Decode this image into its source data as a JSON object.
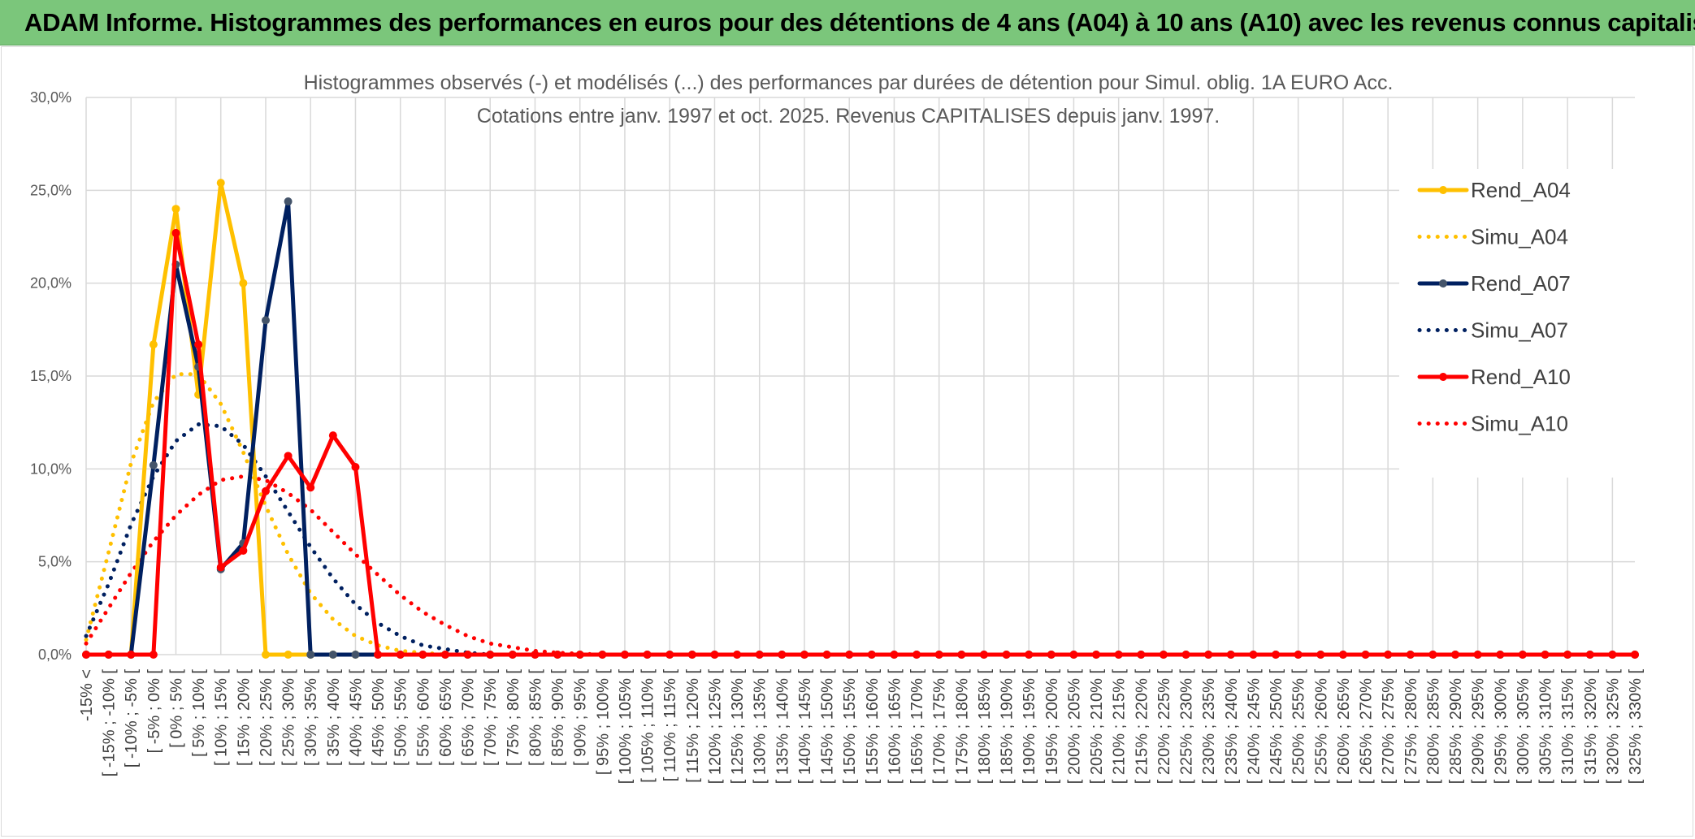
{
  "banner": {
    "title": "ADAM Informe. Histogrammes des performances en euros pour des détentions de 4 ans (A04) à 10 ans (A10) avec les revenus connus capitalisés"
  },
  "colors": {
    "banner_bg": "#7bc67b",
    "A04": "#ffc000",
    "A07": "#002060",
    "A07_marker": "#44546a",
    "A10": "#ff0000",
    "grid": "#d9d9d9"
  },
  "chart_data": {
    "type": "line",
    "title": "Histogrammes observés (-) et modélisés (...) des performances par durées de détention pour Simul. oblig. 1A EURO Acc.",
    "subtitle": "Cotations entre janv. 1997 et oct. 2025. Revenus CAPITALISES depuis janv. 1997.",
    "ylim": [
      0,
      30
    ],
    "yticks": [
      "0,0%",
      "5,0%",
      "10,0%",
      "15,0%",
      "20,0%",
      "25,0%",
      "30,0%"
    ],
    "grid": true,
    "legend_position": "right",
    "categories": [
      "-15% <",
      "[ -15% ; -10% [",
      "[ -10% ; -5% [",
      "[ -5% ; 0% [",
      "[ 0% ; 5% [",
      "[ 5% ; 10% [",
      "[ 10% ; 15% [",
      "[ 15% ; 20% [",
      "[ 20% ; 25% [",
      "[ 25% ; 30% [",
      "[ 30% ; 35% [",
      "[ 35% ; 40% [",
      "[ 40% ; 45% [",
      "[ 45% ; 50% [",
      "[ 50% ; 55% [",
      "[ 55% ; 60% [",
      "[ 60% ; 65% [",
      "[ 65% ; 70% [",
      "[ 70% ; 75% [",
      "[ 75% ; 80% [",
      "[ 80% ; 85% [",
      "[ 85% ; 90% [",
      "[ 90% ; 95% [",
      "[ 95% ; 100% [",
      "[ 100% ; 105% [",
      "[ 105% ; 110% [",
      "[ 110% ; 115% [",
      "[ 115% ; 120% [",
      "[ 120% ; 125% [",
      "[ 125% ; 130% [",
      "[ 130% ; 135% [",
      "[ 135% ; 140% [",
      "[ 140% ; 145% [",
      "[ 145% ; 150% [",
      "[ 150% ; 155% [",
      "[ 155% ; 160% [",
      "[ 160% ; 165% [",
      "[ 165% ; 170% [",
      "[ 170% ; 175% [",
      "[ 175% ; 180% [",
      "[ 180% ; 185% [",
      "[ 185% ; 190% [",
      "[ 190% ; 195% [",
      "[ 195% ; 200% [",
      "[ 200% ; 205% [",
      "[ 205% ; 210% [",
      "[ 210% ; 215% [",
      "[ 215% ; 220% [",
      "[ 220% ; 225% [",
      "[ 225% ; 230% [",
      "[ 230% ; 235% [",
      "[ 235% ; 240% [",
      "[ 240% ; 245% [",
      "[ 245% ; 250% [",
      "[ 250% ; 255% [",
      "[ 255% ; 260% [",
      "[ 260% ; 265% [",
      "[ 265% ; 270% [",
      "[ 270% ; 275% [",
      "[ 275% ; 280% [",
      "[ 280% ; 285% [",
      "[ 285% ; 290% [",
      "[ 290% ; 295% [",
      "[ 295% ; 300% [",
      "[ 300% ; 305% [",
      "[ 305% ; 310% [",
      "[ 310% ; 315% [",
      "[ 315% ; 320% [",
      "[ 320% ; 325% [",
      "[ 325% ; 330% ["
    ],
    "series": [
      {
        "name": "Rend_A04",
        "style": "solid",
        "color": "#ffc000",
        "values": [
          0,
          0,
          0,
          16.7,
          24.0,
          14.0,
          25.4,
          20.0,
          0,
          0,
          0,
          0,
          0,
          0,
          0,
          0,
          0,
          0,
          0,
          0,
          0,
          0,
          0,
          0,
          0,
          0,
          0,
          0,
          0,
          0,
          0,
          0,
          0,
          0,
          0,
          0,
          0,
          0,
          0,
          0,
          0,
          0,
          0,
          0,
          0,
          0,
          0,
          0,
          0,
          0,
          0,
          0,
          0,
          0,
          0,
          0,
          0,
          0,
          0,
          0,
          0,
          0,
          0,
          0,
          0,
          0,
          0,
          0,
          0,
          0
        ]
      },
      {
        "name": "Simu_A04",
        "style": "dotted",
        "color": "#ffc000",
        "values": [
          0.8,
          5.5,
          10.3,
          13.6,
          15.1,
          15.1,
          13.5,
          10.9,
          8.0,
          5.4,
          3.3,
          1.9,
          1.0,
          0.5,
          0.2,
          0.1,
          0,
          0,
          0,
          0,
          0,
          0,
          0,
          0,
          0,
          0,
          0,
          0,
          0,
          0,
          0,
          0,
          0,
          0,
          0,
          0,
          0,
          0,
          0,
          0,
          0,
          0,
          0,
          0,
          0,
          0,
          0,
          0,
          0,
          0,
          0,
          0,
          0,
          0,
          0,
          0,
          0,
          0,
          0,
          0,
          0,
          0,
          0,
          0,
          0,
          0,
          0,
          0,
          0,
          0
        ]
      },
      {
        "name": "Rend_A07",
        "style": "solid",
        "color": "#002060",
        "values": [
          0,
          0,
          0,
          10.2,
          21.0,
          15.5,
          4.6,
          6.0,
          18.0,
          24.4,
          0,
          0,
          0,
          0,
          0,
          0,
          0,
          0,
          0,
          0,
          0,
          0,
          0,
          0,
          0,
          0,
          0,
          0,
          0,
          0,
          0,
          0,
          0,
          0,
          0,
          0,
          0,
          0,
          0,
          0,
          0,
          0,
          0,
          0,
          0,
          0,
          0,
          0,
          0,
          0,
          0,
          0,
          0,
          0,
          0,
          0,
          0,
          0,
          0,
          0,
          0,
          0,
          0,
          0,
          0,
          0,
          0,
          0,
          0,
          0
        ]
      },
      {
        "name": "Simu_A07",
        "style": "dotted",
        "color": "#002060",
        "values": [
          1.0,
          3.8,
          7.0,
          9.6,
          11.5,
          12.4,
          12.3,
          11.3,
          9.6,
          7.7,
          5.8,
          4.1,
          2.7,
          1.7,
          1.0,
          0.5,
          0.3,
          0.1,
          0,
          0,
          0,
          0,
          0,
          0,
          0,
          0,
          0,
          0,
          0,
          0,
          0,
          0,
          0,
          0,
          0,
          0,
          0,
          0,
          0,
          0,
          0,
          0,
          0,
          0,
          0,
          0,
          0,
          0,
          0,
          0,
          0,
          0,
          0,
          0,
          0,
          0,
          0,
          0,
          0,
          0,
          0,
          0,
          0,
          0,
          0,
          0,
          0,
          0,
          0,
          0
        ]
      },
      {
        "name": "Rend_A10",
        "style": "solid",
        "color": "#ff0000",
        "values": [
          0,
          0,
          0,
          0,
          22.7,
          16.7,
          4.7,
          5.6,
          8.8,
          10.7,
          9.0,
          11.8,
          10.1,
          0,
          0,
          0,
          0,
          0,
          0,
          0,
          0,
          0,
          0,
          0,
          0,
          0,
          0,
          0,
          0,
          0,
          0,
          0,
          0,
          0,
          0,
          0,
          0,
          0,
          0,
          0,
          0,
          0,
          0,
          0,
          0,
          0,
          0,
          0,
          0,
          0,
          0,
          0,
          0,
          0,
          0,
          0,
          0,
          0,
          0,
          0,
          0,
          0,
          0,
          0,
          0,
          0,
          0,
          0,
          0,
          0
        ]
      },
      {
        "name": "Simu_A10",
        "style": "dotted",
        "color": "#ff0000",
        "values": [
          0.6,
          2.5,
          4.4,
          6.1,
          7.5,
          8.6,
          9.4,
          9.6,
          9.4,
          8.7,
          7.8,
          6.6,
          5.4,
          4.3,
          3.2,
          2.3,
          1.6,
          1.0,
          0.6,
          0.4,
          0.2,
          0.1,
          0.05,
          0,
          0,
          0,
          0,
          0,
          0,
          0,
          0,
          0,
          0,
          0,
          0,
          0,
          0,
          0,
          0,
          0,
          0,
          0,
          0,
          0,
          0,
          0,
          0,
          0,
          0,
          0,
          0,
          0,
          0,
          0,
          0,
          0,
          0,
          0,
          0,
          0,
          0,
          0,
          0,
          0,
          0,
          0,
          0,
          0,
          0,
          0
        ]
      }
    ]
  }
}
